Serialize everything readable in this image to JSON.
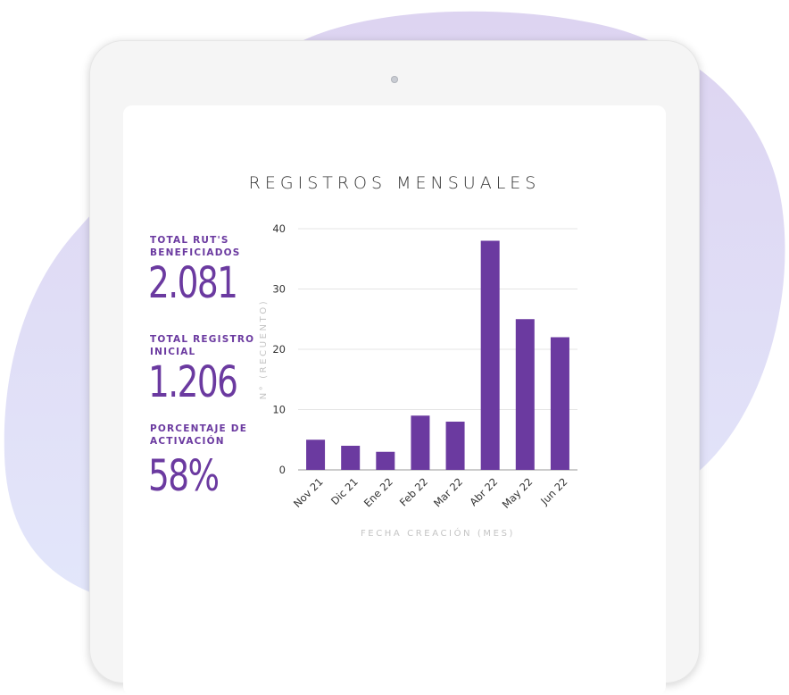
{
  "kpis": [
    {
      "label": "TOTAL RUT'S BENEFICIADOS",
      "value": "2.081"
    },
    {
      "label": "TOTAL REGISTRO INICIAL",
      "value": "1.206"
    },
    {
      "label": "PORCENTAJE DE ACTIVACIÓN",
      "value": "58%"
    }
  ],
  "colors": {
    "accent": "#6b3aa0",
    "bar": "#6b3aa0",
    "blob": "#ddd6f2",
    "device": "#f5f5f5",
    "gridline": "#e4e4e4"
  },
  "chart_data": {
    "type": "bar",
    "title": "REGISTROS MENSUALES",
    "xlabel": "FECHA CREACIÓN (MES)",
    "ylabel": "N° (RECUENTO)",
    "categories": [
      "Nov 21",
      "Dic 21",
      "Ene 22",
      "Feb 22",
      "Mar 22",
      "Abr 22",
      "May 22",
      "Jun 22"
    ],
    "values": [
      5,
      4,
      3,
      9,
      8,
      38,
      25,
      22
    ],
    "yticks": [
      0,
      10,
      20,
      30,
      40
    ],
    "ylim": [
      0,
      40
    ],
    "grid": true,
    "legend": "none"
  }
}
